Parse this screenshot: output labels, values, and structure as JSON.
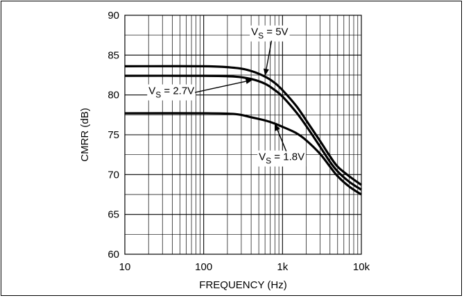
{
  "chart_data": {
    "type": "line",
    "title": "",
    "xlabel": "FREQUENCY (Hz)",
    "ylabel": "CMRR (dB)",
    "xscale": "log",
    "xlim": [
      10,
      10000
    ],
    "ylim": [
      60,
      90
    ],
    "xticks": [
      10,
      100,
      1000,
      10000
    ],
    "xtick_labels": [
      "10",
      "100",
      "1k",
      "10k"
    ],
    "yticks": [
      60,
      65,
      70,
      75,
      80,
      85,
      90
    ],
    "ytick_labels": [
      "60",
      "65",
      "70",
      "75",
      "80",
      "85",
      "90"
    ],
    "grid": true,
    "series": [
      {
        "name": "VS = 5V",
        "label_main": "V",
        "label_sub": "S",
        "label_rest": " = 5V",
        "points": [
          [
            10,
            83.6
          ],
          [
            100,
            83.6
          ],
          [
            250,
            83.4
          ],
          [
            400,
            83.0
          ],
          [
            600,
            82.3
          ],
          [
            800,
            81.5
          ],
          [
            1000,
            80.6
          ],
          [
            1500,
            78.6
          ],
          [
            2000,
            76.8
          ],
          [
            3000,
            74.2
          ],
          [
            4000,
            72.3
          ],
          [
            5000,
            71.0
          ],
          [
            7000,
            69.8
          ],
          [
            10000,
            68.7
          ]
        ]
      },
      {
        "name": "VS = 2.7V",
        "label_main": "V",
        "label_sub": "S",
        "label_rest": " = 2.7V",
        "points": [
          [
            10,
            82.4
          ],
          [
            100,
            82.4
          ],
          [
            250,
            82.3
          ],
          [
            400,
            82.0
          ],
          [
            600,
            81.4
          ],
          [
            800,
            80.6
          ],
          [
            1000,
            79.8
          ],
          [
            1500,
            77.8
          ],
          [
            2000,
            76.1
          ],
          [
            3000,
            73.5
          ],
          [
            4000,
            71.6
          ],
          [
            5000,
            70.4
          ],
          [
            7000,
            69.1
          ],
          [
            10000,
            68.1
          ]
        ]
      },
      {
        "name": "VS = 1.8V",
        "label_main": "V",
        "label_sub": "S",
        "label_rest": " = 1.8V",
        "points": [
          [
            10,
            77.7
          ],
          [
            100,
            77.7
          ],
          [
            250,
            77.6
          ],
          [
            400,
            77.2
          ],
          [
            600,
            76.8
          ],
          [
            800,
            76.4
          ],
          [
            1000,
            76.0
          ],
          [
            1500,
            75.2
          ],
          [
            2000,
            74.3
          ],
          [
            3000,
            72.6
          ],
          [
            4000,
            71.0
          ],
          [
            5000,
            69.8
          ],
          [
            7000,
            68.5
          ],
          [
            10000,
            67.5
          ]
        ]
      }
    ],
    "annotations": [
      {
        "series": 0,
        "label_x": 400,
        "label_y": 87.5,
        "arrow_to": [
          600,
          82.4
        ]
      },
      {
        "series": 1,
        "label_x": 20,
        "label_y": 80.1,
        "arrow_to": [
          420,
          81.9
        ]
      },
      {
        "series": 2,
        "label_x": 500,
        "label_y": 71.8,
        "arrow_to": [
          800,
          76.4
        ]
      }
    ],
    "line_color": "#000000",
    "grid_color": "#000000"
  }
}
